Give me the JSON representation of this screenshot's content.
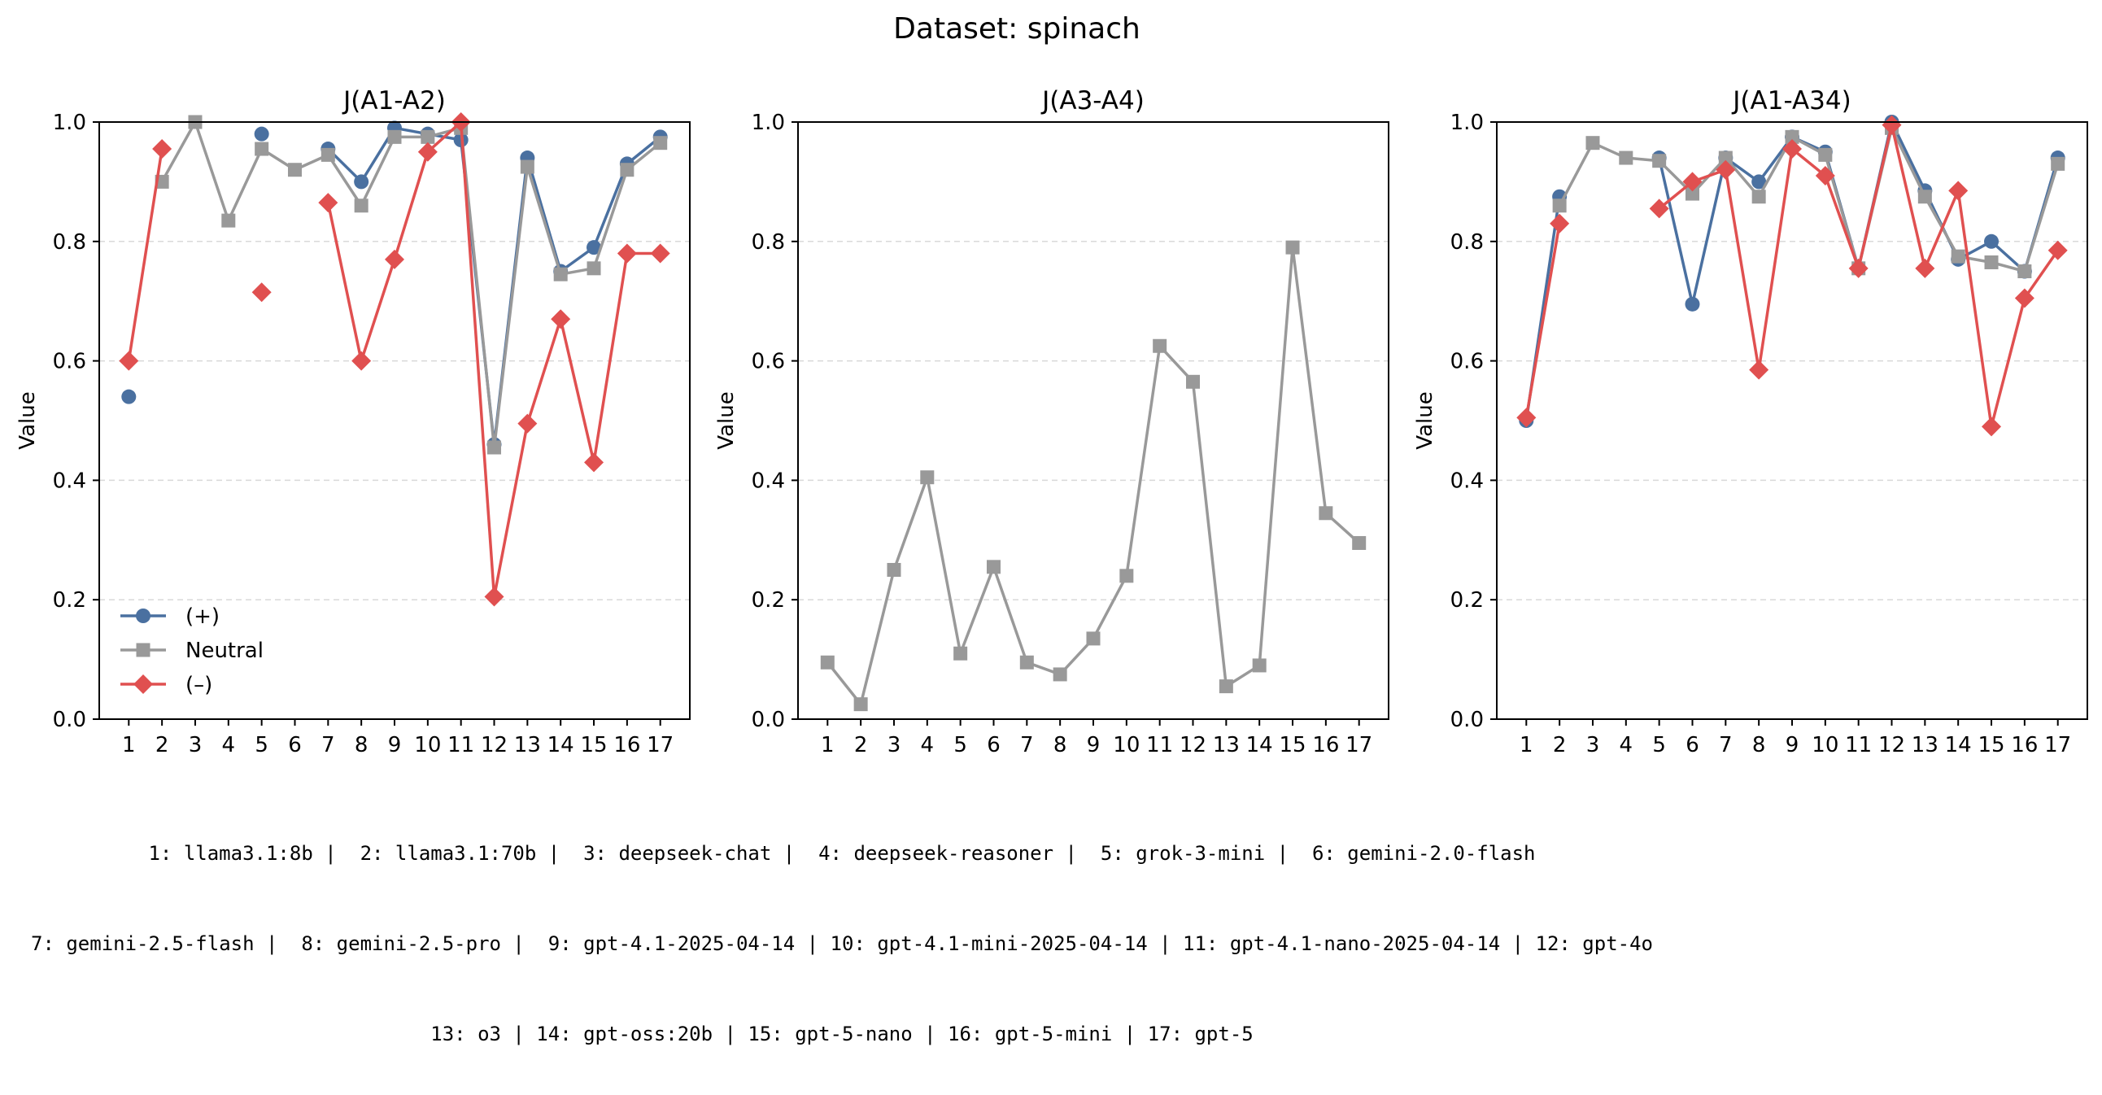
{
  "title": "Dataset: spinach",
  "ylabel": "Value",
  "footer_lines": [
    "1: llama3.1:8b |  2: llama3.1:70b |  3: deepseek-chat |  4: deepseek-reasoner |  5: grok-3-mini |  6: gemini-2.0-flash",
    "7: gemini-2.5-flash |  8: gemini-2.5-pro |  9: gpt-4.1-2025-04-14 | 10: gpt-4.1-mini-2025-04-14 | 11: gpt-4.1-nano-2025-04-14 | 12: gpt-4o",
    "13: o3 | 14: gpt-oss:20b | 15: gpt-5-nano | 16: gpt-5-mini | 17: gpt-5"
  ],
  "colors": {
    "plus": "#4a70a0",
    "neutral": "#999999",
    "minus": "#e05050",
    "grid": "#d9d9d9"
  },
  "chart_data": [
    {
      "type": "line",
      "title": "J(A1-A2)",
      "ylabel": "Value",
      "xlabel": "",
      "x": [
        1,
        2,
        3,
        4,
        5,
        6,
        7,
        8,
        9,
        10,
        11,
        12,
        13,
        14,
        15,
        16,
        17
      ],
      "ylim": [
        0,
        1
      ],
      "yticks": [
        "0.0",
        "0.2",
        "0.4",
        "0.6",
        "0.8",
        "1.0"
      ],
      "grid": "horizontal dashed",
      "legend": {
        "placement": "lower-left",
        "entries": [
          "(+)",
          "Neutral",
          "(–)"
        ]
      },
      "series": [
        {
          "name": "(+)",
          "marker": "circle",
          "color": "#4a70a0",
          "values": [
            0.54,
            null,
            null,
            null,
            0.98,
            null,
            0.955,
            0.9,
            0.99,
            0.98,
            0.97,
            0.46,
            0.94,
            0.75,
            0.79,
            0.93,
            0.975
          ]
        },
        {
          "name": "Neutral",
          "marker": "square",
          "color": "#999999",
          "values": [
            null,
            0.9,
            1.0,
            0.835,
            0.955,
            0.92,
            0.945,
            0.86,
            0.975,
            0.975,
            0.99,
            0.455,
            0.925,
            0.745,
            0.755,
            0.92,
            0.965
          ]
        },
        {
          "name": "(–)",
          "marker": "diamond",
          "color": "#e05050",
          "values": [
            0.6,
            0.955,
            null,
            null,
            0.715,
            null,
            0.865,
            0.6,
            0.77,
            0.95,
            1.0,
            0.205,
            0.495,
            0.67,
            0.43,
            0.78,
            0.78
          ]
        }
      ]
    },
    {
      "type": "line",
      "title": "J(A3-A4)",
      "ylabel": "Value",
      "xlabel": "",
      "x": [
        1,
        2,
        3,
        4,
        5,
        6,
        7,
        8,
        9,
        10,
        11,
        12,
        13,
        14,
        15,
        16,
        17
      ],
      "ylim": [
        0,
        1
      ],
      "yticks": [
        "0.0",
        "0.2",
        "0.4",
        "0.6",
        "0.8",
        "1.0"
      ],
      "grid": "horizontal dashed",
      "series": [
        {
          "name": "Neutral",
          "marker": "square",
          "color": "#999999",
          "values": [
            0.095,
            0.025,
            0.25,
            0.405,
            0.11,
            0.255,
            0.095,
            0.075,
            0.135,
            0.24,
            0.625,
            0.565,
            0.055,
            0.09,
            0.79,
            0.345,
            0.295
          ]
        }
      ]
    },
    {
      "type": "line",
      "title": "J(A1-A34)",
      "ylabel": "Value",
      "xlabel": "",
      "x": [
        1,
        2,
        3,
        4,
        5,
        6,
        7,
        8,
        9,
        10,
        11,
        12,
        13,
        14,
        15,
        16,
        17
      ],
      "ylim": [
        0,
        1
      ],
      "yticks": [
        "0.0",
        "0.2",
        "0.4",
        "0.6",
        "0.8",
        "1.0"
      ],
      "grid": "horizontal dashed",
      "series": [
        {
          "name": "(+)",
          "marker": "circle",
          "color": "#4a70a0",
          "values": [
            0.5,
            0.875,
            null,
            null,
            0.94,
            0.695,
            0.94,
            0.9,
            0.975,
            0.95,
            0.755,
            1.0,
            0.885,
            0.77,
            0.8,
            0.75,
            0.94
          ]
        },
        {
          "name": "Neutral",
          "marker": "square",
          "color": "#999999",
          "values": [
            null,
            0.86,
            0.965,
            0.94,
            0.935,
            0.88,
            0.94,
            0.875,
            0.975,
            0.945,
            0.755,
            0.99,
            0.875,
            0.775,
            0.765,
            0.75,
            0.93
          ]
        },
        {
          "name": "(–)",
          "marker": "diamond",
          "color": "#e05050",
          "values": [
            0.505,
            0.83,
            null,
            null,
            0.855,
            0.9,
            0.92,
            0.585,
            0.955,
            0.91,
            0.755,
            0.995,
            0.755,
            0.885,
            0.49,
            0.705,
            0.785
          ]
        }
      ]
    }
  ]
}
